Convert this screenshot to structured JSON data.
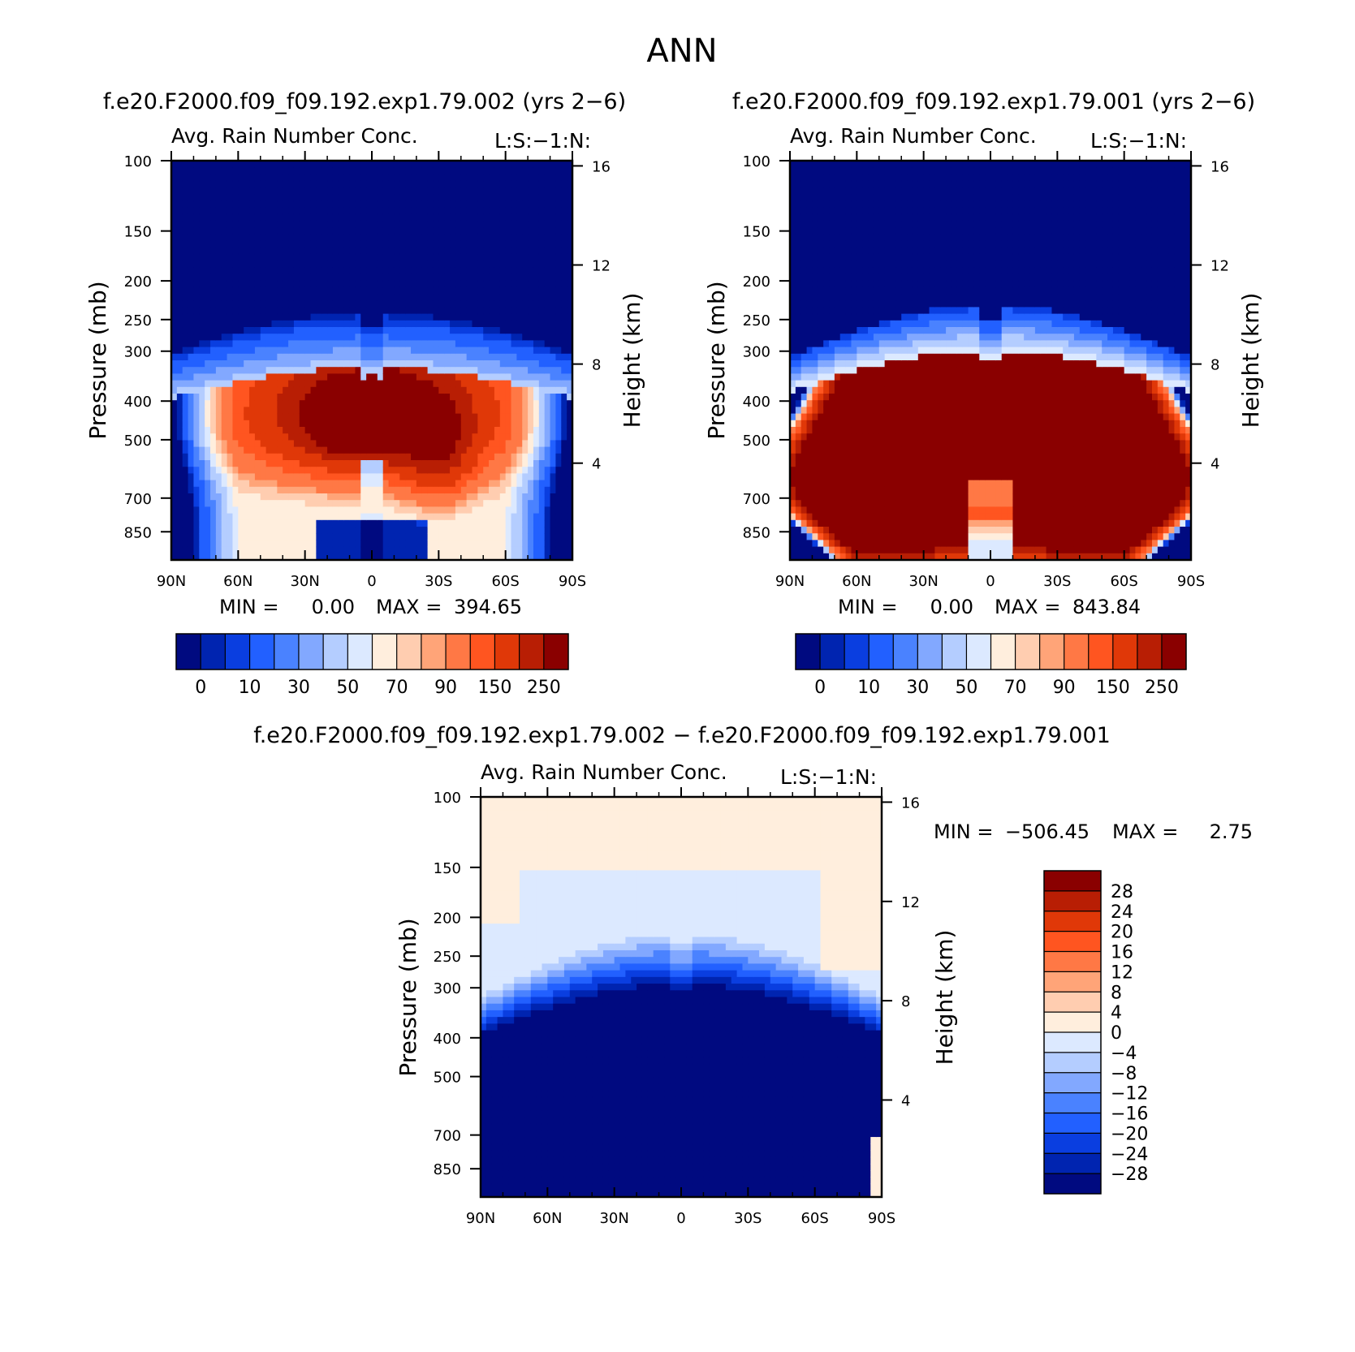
{
  "figure_title": "ANN",
  "colors": {
    "abs_levels": [
      "#000a80",
      "#0024b0",
      "#0a3ee0",
      "#2260ff",
      "#4a82ff",
      "#82a8ff",
      "#b4cdff",
      "#dce9ff",
      "#ffeedd",
      "#ffcdb0",
      "#ffa478",
      "#ff7845",
      "#ff5520",
      "#e03808",
      "#b81e04",
      "#8a0000"
    ],
    "diff_levels": [
      "#000a80",
      "#0024b0",
      "#0a3ee0",
      "#2260ff",
      "#4a82ff",
      "#82a8ff",
      "#b4cdff",
      "#dce9ff",
      "#ffeedd",
      "#ffcdb0",
      "#ffa478",
      "#ff7845",
      "#ff5520",
      "#e03808",
      "#b81e04",
      "#8a0000"
    ]
  },
  "chart_data": [
    {
      "type": "heatmap",
      "case_title": "f.e20.F2000.f09_f09.192.exp1.79.002 (yrs 2−6)",
      "title": "Avg. Rain Number Conc.",
      "right_string": "L:S:−1:N:",
      "xlabel": "",
      "ylabel": "Pressure (mb)",
      "y2label": "Height (km)",
      "x_ticklabels": [
        "90N",
        "60N",
        "30N",
        "0",
        "30S",
        "60S",
        "90S"
      ],
      "y_ticks": [
        100,
        150,
        200,
        250,
        300,
        400,
        500,
        700,
        850
      ],
      "y2_ticks": [
        16,
        12,
        8,
        4
      ],
      "ylim": [
        100,
        1000
      ],
      "min": "0.00",
      "max": "394.65",
      "min_label": "MIN =",
      "max_label": "MAX =",
      "colorbar_labels": [
        "0",
        "10",
        "30",
        "50",
        "70",
        "90",
        "150",
        "250"
      ],
      "field": {
        "baseline": {
          "ice_top": 330,
          "ice_jet": 300,
          "wings": 275,
          "polarN": 345,
          "polarS": 390
        },
        "max_value": 394.65
      }
    },
    {
      "type": "heatmap",
      "case_title": "f.e20.F2000.f09_f09.192.exp1.79.001 (yrs 2−6)",
      "title": "Avg. Rain Number Conc.",
      "right_string": "L:S:−1:N:",
      "xlabel": "",
      "ylabel": "Pressure (mb)",
      "y2label": "Height (km)",
      "x_ticklabels": [
        "90N",
        "60N",
        "30N",
        "0",
        "30S",
        "60S",
        "90S"
      ],
      "y_ticks": [
        100,
        150,
        200,
        250,
        300,
        400,
        500,
        700,
        850
      ],
      "y2_ticks": [
        16,
        12,
        8,
        4
      ],
      "ylim": [
        100,
        1000
      ],
      "min": "0.00",
      "max": "843.84",
      "min_label": "MIN =",
      "max_label": "MAX =",
      "colorbar_labels": [
        "0",
        "10",
        "30",
        "50",
        "70",
        "90",
        "150",
        "250"
      ],
      "field": {
        "max_value": 843.84
      }
    },
    {
      "type": "heatmap",
      "case_title": "f.e20.F2000.f09_f09.192.exp1.79.002 − f.e20.F2000.f09_f09.192.exp1.79.001",
      "title": "Avg. Rain Number Conc.",
      "right_string": "L:S:−1:N:",
      "xlabel": "",
      "ylabel": "Pressure (mb)",
      "y2label": "Height (km)",
      "x_ticklabels": [
        "90N",
        "60N",
        "30N",
        "0",
        "30S",
        "60S",
        "90S"
      ],
      "y_ticks": [
        100,
        150,
        200,
        250,
        300,
        400,
        500,
        700,
        850
      ],
      "y2_ticks": [
        16,
        12,
        8,
        4
      ],
      "ylim": [
        100,
        1000
      ],
      "min": "−506.45",
      "max": "2.75",
      "min_label": "MIN =",
      "max_label": "MAX =",
      "colorbar_labels": [
        "28",
        "24",
        "20",
        "16",
        "12",
        "8",
        "4",
        "0",
        "−4",
        "−8",
        "−12",
        "−16",
        "−20",
        "−24",
        "−28"
      ]
    }
  ]
}
